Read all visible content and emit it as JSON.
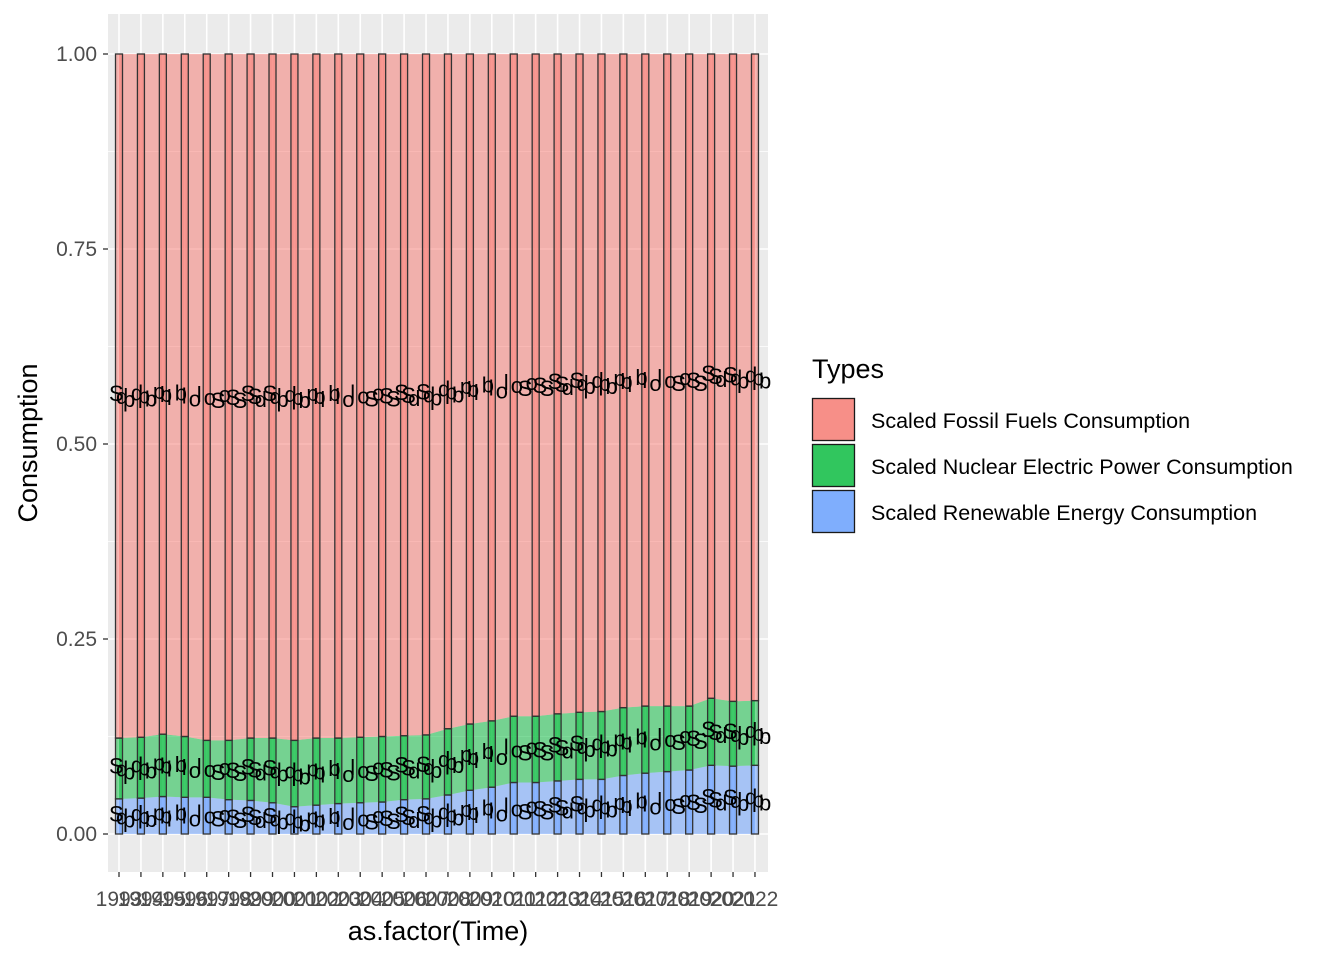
{
  "chart_data": {
    "type": "area",
    "title": "",
    "xlabel": "as.factor(Time)",
    "ylabel": "Consumption",
    "ylim": [
      -0.05,
      1.05
    ],
    "yticks": [
      "0.00",
      "0.25",
      "0.50",
      "0.75",
      "1.00"
    ],
    "ytick_values": [
      0,
      0.25,
      0.5,
      0.75,
      1.0
    ],
    "x": [
      "1993",
      "1994",
      "1995",
      "1996",
      "1997",
      "1998",
      "1999",
      "2000",
      "2001",
      "2002",
      "2003",
      "2004",
      "2005",
      "2006",
      "2007",
      "2008",
      "2009",
      "2010",
      "2011",
      "2012",
      "2013",
      "2014",
      "2015",
      "2016",
      "2017",
      "2018",
      "2019",
      "2020",
      "2021",
      "2022"
    ],
    "stacking": "fill",
    "grid": true,
    "legend": {
      "title": "Types",
      "placement": "right",
      "entries": [
        "Scaled Fossil Fuels Consumption",
        "Scaled Nuclear Electric Power Consumption",
        "Scaled Renewable Energy Consumption"
      ]
    },
    "colors": {
      "fossil": "#F8766D",
      "nuclear": "#00BA38",
      "renewable": "#619CFF",
      "panel": "#EBEBEB",
      "grid": "#FFFFFF"
    },
    "series": [
      {
        "name": "Scaled Renewable Energy Consumption",
        "values": [
          0.045,
          0.046,
          0.048,
          0.047,
          0.047,
          0.044,
          0.043,
          0.04,
          0.035,
          0.037,
          0.039,
          0.04,
          0.041,
          0.044,
          0.045,
          0.05,
          0.056,
          0.06,
          0.066,
          0.066,
          0.068,
          0.07,
          0.07,
          0.075,
          0.078,
          0.08,
          0.082,
          0.088,
          0.087,
          0.088
        ]
      },
      {
        "name": "Scaled Nuclear Electric Power Consumption",
        "values": [
          0.078,
          0.078,
          0.08,
          0.078,
          0.073,
          0.076,
          0.08,
          0.083,
          0.085,
          0.086,
          0.084,
          0.084,
          0.084,
          0.082,
          0.082,
          0.085,
          0.085,
          0.085,
          0.085,
          0.085,
          0.086,
          0.086,
          0.087,
          0.087,
          0.086,
          0.084,
          0.082,
          0.086,
          0.083,
          0.083
        ]
      },
      {
        "name": "Scaled Fossil Fuels Consumption",
        "values": [
          0.877,
          0.876,
          0.872,
          0.875,
          0.88,
          0.88,
          0.877,
          0.877,
          0.88,
          0.877,
          0.877,
          0.876,
          0.875,
          0.874,
          0.873,
          0.865,
          0.859,
          0.855,
          0.849,
          0.849,
          0.846,
          0.844,
          0.843,
          0.838,
          0.836,
          0.836,
          0.836,
          0.826,
          0.83,
          0.829
        ]
      }
    ]
  }
}
